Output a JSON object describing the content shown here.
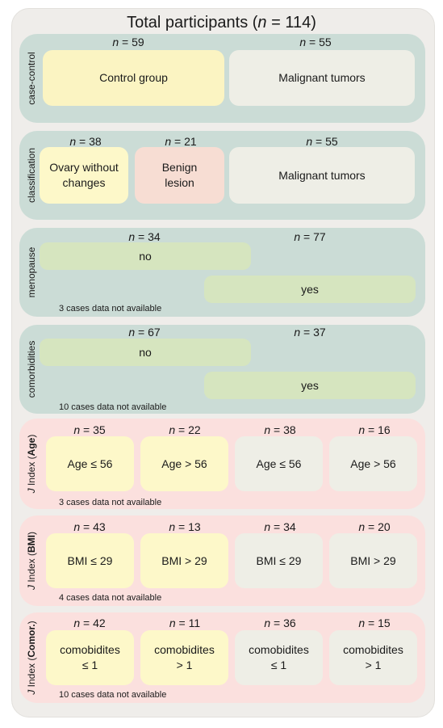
{
  "title": {
    "prefix": "Total participants (",
    "n": "n",
    "suffix": " = 114)"
  },
  "n_sym": "n",
  "case_control": {
    "label": "case-control",
    "n": [
      " = 59",
      " = 55"
    ],
    "boxes": [
      "Control group",
      "Malignant tumors"
    ]
  },
  "classification": {
    "label": "classification",
    "n": [
      " = 38",
      " = 21",
      " = 55"
    ],
    "boxes": [
      [
        "Ovary without",
        "changes"
      ],
      [
        "Benign",
        "lesion"
      ],
      [
        "Malignant tumors"
      ]
    ]
  },
  "menopause": {
    "label": "menopause",
    "n": [
      " = 34",
      " = 77"
    ],
    "no": "no",
    "yes": "yes",
    "note": "3 cases data not available"
  },
  "comorbidities": {
    "label": "comorbidities",
    "n": [
      " = 67",
      " = 37"
    ],
    "no": "no",
    "yes": "yes",
    "note": "10 cases data not available"
  },
  "j_age": {
    "label_j": "J",
    "label_pre": " Index (",
    "label_bold": "Age",
    "label_post": ")",
    "n": [
      " = 35",
      " = 22",
      " = 38",
      " = 16"
    ],
    "boxes": [
      "Age ≤ 56",
      "Age > 56",
      "Age ≤ 56",
      "Age > 56"
    ],
    "note": "3 cases data not available"
  },
  "j_bmi": {
    "label_j": "J",
    "label_pre": " Index (",
    "label_bold": "BMI",
    "label_post": ")",
    "n": [
      " = 43",
      " = 13",
      " = 34",
      " = 20"
    ],
    "boxes": [
      "BMI ≤ 29",
      "BMI > 29",
      "BMI ≤ 29",
      "BMI > 29"
    ],
    "note": "4 cases data not available"
  },
  "j_comor": {
    "label_j": "J",
    "label_pre": " Index (",
    "label_bold": "Comor.",
    "label_post": ")",
    "n": [
      " = 42",
      " = 11",
      " = 36",
      " = 15"
    ],
    "boxes": [
      [
        "comobidites",
        "≤ 1"
      ],
      [
        "comobidites",
        "> 1"
      ],
      [
        "comobidites",
        "≤ 1"
      ],
      [
        "comobidites",
        "> 1"
      ]
    ],
    "note": "10 cases data not available"
  },
  "colors": {
    "green_panel": "#cbdcd6",
    "pink_panel": "#fbe0de",
    "yellow_box": "#fbf4c2",
    "grey_box": "#eeeee6",
    "salmon_box": "#f7ddd3",
    "bar_green": "#d6e5bf"
  }
}
